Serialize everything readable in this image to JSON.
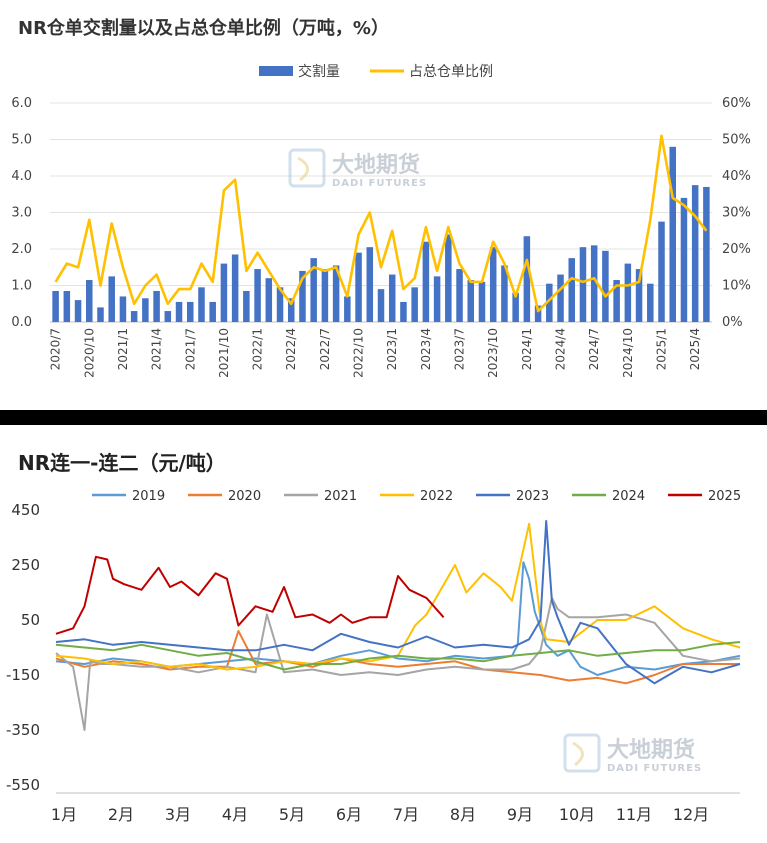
{
  "chart_data": [
    {
      "type": "bar+line",
      "title": "NR仓单交割量以及占总仓单比例（万吨，%）",
      "legend": {
        "bar": "交割量",
        "line": "占总仓单比例",
        "placement": "top"
      },
      "x_labels": [
        "2020/7",
        "2020/10",
        "2021/1",
        "2021/4",
        "2021/7",
        "2021/10",
        "2022/1",
        "2022/4",
        "2022/7",
        "2022/10",
        "2023/1",
        "2023/4",
        "2023/7",
        "2023/10",
        "2024/1",
        "2024/4",
        "2024/7",
        "2024/10",
        "2025/1",
        "2025/4"
      ],
      "y_left_ticks": [
        "0.0",
        "1.0",
        "2.0",
        "3.0",
        "4.0",
        "5.0",
        "6.0"
      ],
      "y_right_ticks": [
        "0%",
        "10%",
        "20%",
        "30%",
        "40%",
        "50%",
        "60%"
      ],
      "ylim_left": [
        0,
        6
      ],
      "ylim_right": [
        0,
        60
      ],
      "months_count": 59,
      "bar_values": [
        0.85,
        0.85,
        0.6,
        1.15,
        0.4,
        1.25,
        0.7,
        0.3,
        0.65,
        0.85,
        0.3,
        0.55,
        0.55,
        0.95,
        0.55,
        1.6,
        1.85,
        0.85,
        1.45,
        1.2,
        0.95,
        0.65,
        1.4,
        1.75,
        1.45,
        1.55,
        0.7,
        1.9,
        2.05,
        0.9,
        1.3,
        0.55,
        0.95,
        2.2,
        1.25,
        2.4,
        1.45,
        1.15,
        1.1,
        2.05,
        1.55,
        0.8,
        2.35,
        0.45,
        1.05,
        1.3,
        1.75,
        2.05,
        2.1,
        1.95,
        1.15,
        1.6,
        1.45,
        1.05,
        2.75,
        4.8,
        3.4,
        3.75,
        3.7
      ],
      "line_values": [
        11,
        16,
        15,
        28,
        10,
        27,
        15,
        5,
        10,
        13,
        5,
        9,
        9,
        16,
        11,
        36,
        39,
        14,
        19,
        14,
        9,
        5,
        12,
        15,
        14,
        15,
        7,
        24,
        30,
        15,
        25,
        9,
        12,
        26,
        14,
        26,
        16,
        11,
        11,
        22,
        16,
        7,
        17,
        3,
        6,
        9,
        12,
        11,
        12,
        7,
        10,
        10,
        11,
        28,
        51,
        34,
        32,
        29,
        25
      ],
      "colors": {
        "bar": "#4472C4",
        "line": "#FFC000"
      }
    },
    {
      "type": "line",
      "title": "NR连一-连二（元/吨）",
      "legend_placement": "top",
      "y_ticks": [
        "450",
        "250",
        "50",
        "-150",
        "-350",
        "-550"
      ],
      "ylim": [
        -550,
        450
      ],
      "x_months": [
        "1月",
        "2月",
        "3月",
        "4月",
        "5月",
        "6月",
        "7月",
        "8月",
        "9月",
        "10月",
        "11月",
        "12月"
      ],
      "series": [
        {
          "name": "2019",
          "color": "#5B9BD5",
          "x": [
            0,
            0.5,
            1,
            1.5,
            2,
            2.5,
            3,
            3.5,
            4,
            4.5,
            5,
            5.5,
            6,
            6.5,
            7,
            7.5,
            8,
            8.1,
            8.2,
            8.3,
            8.4,
            8.5,
            8.6,
            8.8,
            9,
            9.2,
            9.5,
            10,
            10.5,
            11,
            11.5,
            12
          ],
          "y": [
            -100,
            -110,
            -90,
            -100,
            -120,
            -110,
            -100,
            -90,
            -100,
            -110,
            -80,
            -60,
            -90,
            -100,
            -80,
            -90,
            -80,
            -40,
            260,
            200,
            80,
            20,
            -40,
            -80,
            -60,
            -120,
            -150,
            -120,
            -130,
            -110,
            -100,
            -80
          ]
        },
        {
          "name": "2020",
          "color": "#ED7D31",
          "x": [
            0,
            0.5,
            1,
            1.5,
            2,
            2.5,
            3,
            3.2,
            3.5,
            4,
            4.5,
            5,
            5.5,
            6,
            6.5,
            7,
            7.5,
            8,
            8.5,
            9,
            9.5,
            10,
            10.5,
            11,
            11.5,
            12
          ],
          "y": [
            -90,
            -120,
            -100,
            -110,
            -130,
            -120,
            -120,
            10,
            -110,
            -100,
            -120,
            -90,
            -110,
            -120,
            -110,
            -100,
            -130,
            -140,
            -150,
            -170,
            -160,
            -180,
            -150,
            -110,
            -110,
            -110
          ]
        },
        {
          "name": "2021",
          "color": "#A5A5A5",
          "x": [
            0,
            0.3,
            0.5,
            0.6,
            0.8,
            1,
            1.5,
            2,
            2.5,
            3,
            3.5,
            3.7,
            4,
            4.5,
            5,
            5.5,
            6,
            6.5,
            7,
            7.5,
            8,
            8.3,
            8.5,
            8.7,
            8.8,
            9,
            9.5,
            10,
            10.5,
            11,
            11.5,
            12
          ],
          "y": [
            -70,
            -120,
            -350,
            -100,
            -110,
            -110,
            -120,
            -120,
            -140,
            -120,
            -140,
            70,
            -140,
            -130,
            -150,
            -140,
            -150,
            -130,
            -120,
            -130,
            -130,
            -110,
            -60,
            130,
            90,
            60,
            60,
            70,
            40,
            -80,
            -100,
            -90
          ]
        },
        {
          "name": "2022",
          "color": "#FFC000",
          "x": [
            0,
            0.5,
            1,
            1.5,
            2,
            2.5,
            3,
            3.5,
            4,
            4.5,
            5,
            5.5,
            6,
            6.3,
            6.5,
            7,
            7.2,
            7.5,
            7.8,
            8,
            8.3,
            8.5,
            8.52,
            8.6,
            9,
            9.5,
            10,
            10.5,
            11,
            11.5,
            12
          ],
          "y": [
            -80,
            -90,
            -110,
            -100,
            -120,
            -110,
            -130,
            -120,
            -100,
            -110,
            -90,
            -100,
            -80,
            30,
            70,
            250,
            150,
            220,
            170,
            120,
            400,
            50,
            30,
            -20,
            -30,
            50,
            50,
            100,
            20,
            -20,
            -50
          ]
        },
        {
          "name": "2023",
          "color": "#4472C4",
          "x": [
            0,
            0.5,
            1,
            1.5,
            2,
            2.5,
            3,
            3.5,
            4,
            4.5,
            5,
            5.5,
            6,
            6.5,
            7,
            7.5,
            8,
            8.3,
            8.5,
            8.6,
            8.7,
            8.8,
            9,
            9.2,
            9.5,
            10,
            10.5,
            11,
            11.5,
            12
          ],
          "y": [
            -30,
            -20,
            -40,
            -30,
            -40,
            -50,
            -60,
            -60,
            -40,
            -60,
            0,
            -30,
            -50,
            -10,
            -50,
            -40,
            -50,
            -20,
            50,
            410,
            120,
            60,
            -40,
            40,
            20,
            -110,
            -180,
            -120,
            -140,
            -110
          ]
        },
        {
          "name": "2024",
          "color": "#70AD47",
          "x": [
            0,
            0.5,
            1,
            1.5,
            2,
            2.5,
            3,
            3.5,
            4,
            4.5,
            5,
            5.5,
            6,
            6.5,
            7,
            7.5,
            8,
            8.5,
            9,
            9.5,
            10,
            10.5,
            11,
            11.5,
            12
          ],
          "y": [
            -40,
            -50,
            -60,
            -40,
            -60,
            -80,
            -70,
            -100,
            -130,
            -110,
            -110,
            -90,
            -80,
            -90,
            -90,
            -100,
            -80,
            -70,
            -60,
            -80,
            -70,
            -60,
            -60,
            -40,
            -30
          ]
        },
        {
          "name": "2025",
          "color": "#C00000",
          "x": [
            0,
            0.3,
            0.5,
            0.7,
            0.9,
            1,
            1.2,
            1.5,
            1.8,
            2,
            2.2,
            2.5,
            2.8,
            3,
            3.2,
            3.5,
            3.8,
            4,
            4.2,
            4.5,
            4.8,
            5,
            5.2,
            5.5,
            5.8,
            6,
            6.2,
            6.5,
            6.8
          ],
          "y": [
            0,
            20,
            100,
            280,
            270,
            200,
            180,
            160,
            240,
            170,
            190,
            140,
            220,
            200,
            30,
            100,
            80,
            170,
            60,
            70,
            40,
            70,
            40,
            60,
            60,
            210,
            160,
            130,
            60
          ]
        }
      ]
    }
  ]
}
